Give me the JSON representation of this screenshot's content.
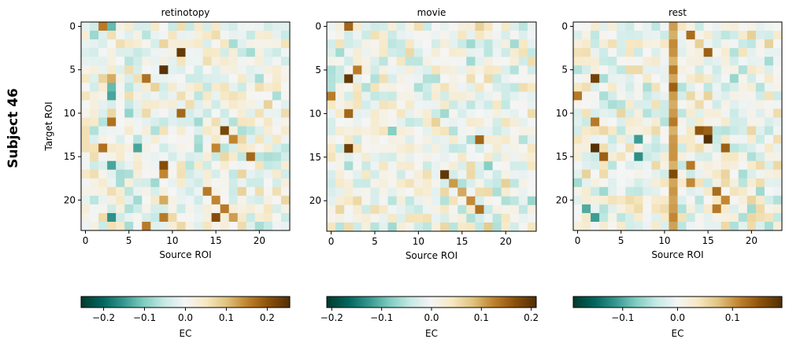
{
  "figure": {
    "row_label": "Subject 46"
  },
  "chart_data": [
    {
      "type": "heatmap",
      "title": "retinotopy",
      "xlabel": "Source ROI",
      "ylabel": "Target ROI",
      "n_rois": 24,
      "x_ticks": [
        0,
        5,
        10,
        15,
        20
      ],
      "y_ticks": [
        0,
        5,
        10,
        15,
        20
      ],
      "colormap": "BrBG_r",
      "vmin": -0.255,
      "vmax": 0.255,
      "colorbar": {
        "label": "EC",
        "ticks": [
          -0.2,
          -0.1,
          0.0,
          0.1,
          0.2
        ],
        "tick_labels": [
          "−0.2",
          "−0.1",
          "0.0",
          "0.1",
          "0.2"
        ]
      },
      "seed": 46001,
      "strong_cells": [
        {
          "r": 0,
          "c": 2,
          "v": 0.16
        },
        {
          "r": 0,
          "c": 3,
          "v": -0.12
        },
        {
          "r": 3,
          "c": 11,
          "v": 0.24
        },
        {
          "r": 5,
          "c": 9,
          "v": 0.25
        },
        {
          "r": 6,
          "c": 7,
          "v": 0.17
        },
        {
          "r": 6,
          "c": 3,
          "v": 0.12
        },
        {
          "r": 7,
          "c": 3,
          "v": -0.12
        },
        {
          "r": 8,
          "c": 3,
          "v": -0.14
        },
        {
          "r": 10,
          "c": 11,
          "v": 0.18
        },
        {
          "r": 11,
          "c": 3,
          "v": 0.17
        },
        {
          "r": 12,
          "c": 16,
          "v": 0.22
        },
        {
          "r": 13,
          "c": 17,
          "v": 0.15
        },
        {
          "r": 14,
          "c": 2,
          "v": 0.17
        },
        {
          "r": 14,
          "c": 6,
          "v": -0.14
        },
        {
          "r": 14,
          "c": 15,
          "v": 0.15
        },
        {
          "r": 15,
          "c": 19,
          "v": 0.18
        },
        {
          "r": 16,
          "c": 9,
          "v": 0.21
        },
        {
          "r": 16,
          "c": 3,
          "v": -0.14
        },
        {
          "r": 17,
          "c": 9,
          "v": 0.15
        },
        {
          "r": 19,
          "c": 14,
          "v": 0.16
        },
        {
          "r": 20,
          "c": 15,
          "v": 0.15
        },
        {
          "r": 20,
          "c": 9,
          "v": 0.12
        },
        {
          "r": 21,
          "c": 16,
          "v": 0.16
        },
        {
          "r": 22,
          "c": 17,
          "v": 0.13
        },
        {
          "r": 22,
          "c": 9,
          "v": 0.16
        },
        {
          "r": 22,
          "c": 3,
          "v": -0.16
        },
        {
          "r": 22,
          "c": 15,
          "v": 0.21
        },
        {
          "r": 23,
          "c": 7,
          "v": 0.16
        }
      ]
    },
    {
      "type": "heatmap",
      "title": "movie",
      "xlabel": "Source ROI",
      "ylabel": "",
      "n_rois": 24,
      "x_ticks": [
        0,
        5,
        10,
        15,
        20
      ],
      "y_ticks": [
        0,
        5,
        10,
        15,
        20
      ],
      "colormap": "BrBG_r",
      "vmin": -0.21,
      "vmax": 0.21,
      "colorbar": {
        "label": "EC",
        "ticks": [
          -0.2,
          -0.1,
          0.0,
          0.1,
          0.2
        ],
        "tick_labels": [
          "−0.2",
          "−0.1",
          "0.0",
          "0.1",
          "0.2"
        ]
      },
      "seed": 46002,
      "strong_cells": [
        {
          "r": 0,
          "c": 2,
          "v": 0.15
        },
        {
          "r": 5,
          "c": 3,
          "v": 0.13
        },
        {
          "r": 6,
          "c": 2,
          "v": 0.2
        },
        {
          "r": 8,
          "c": 0,
          "v": 0.13
        },
        {
          "r": 10,
          "c": 2,
          "v": 0.15
        },
        {
          "r": 12,
          "c": 7,
          "v": -0.08
        },
        {
          "r": 13,
          "c": 17,
          "v": 0.15
        },
        {
          "r": 14,
          "c": 2,
          "v": 0.19
        },
        {
          "r": 16,
          "c": 18,
          "v": -0.08
        },
        {
          "r": 17,
          "c": 13,
          "v": 0.2
        },
        {
          "r": 18,
          "c": 14,
          "v": 0.11
        },
        {
          "r": 19,
          "c": 15,
          "v": 0.1
        },
        {
          "r": 20,
          "c": 16,
          "v": 0.12
        },
        {
          "r": 21,
          "c": 17,
          "v": 0.14
        }
      ]
    },
    {
      "type": "heatmap",
      "title": "rest",
      "xlabel": "Source ROI",
      "ylabel": "",
      "n_rois": 24,
      "x_ticks": [
        0,
        5,
        10,
        15,
        20
      ],
      "y_ticks": [
        0,
        5,
        10,
        15,
        20
      ],
      "colormap": "BrBG_r",
      "vmin": -0.19,
      "vmax": 0.19,
      "colorbar": {
        "label": "EC",
        "ticks": [
          -0.1,
          0.0,
          0.1
        ],
        "tick_labels": [
          "−0.1",
          "0.0",
          "0.1"
        ]
      },
      "seed": 46003,
      "hot_column": {
        "c": 11,
        "v": 0.1
      },
      "strong_cells": [
        {
          "r": 1,
          "c": 13,
          "v": 0.13
        },
        {
          "r": 3,
          "c": 15,
          "v": 0.14
        },
        {
          "r": 6,
          "c": 2,
          "v": 0.17
        },
        {
          "r": 7,
          "c": 11,
          "v": 0.14
        },
        {
          "r": 8,
          "c": 0,
          "v": 0.12
        },
        {
          "r": 11,
          "c": 2,
          "v": 0.12
        },
        {
          "r": 11,
          "c": 11,
          "v": 0.12
        },
        {
          "r": 12,
          "c": 14,
          "v": 0.15
        },
        {
          "r": 12,
          "c": 15,
          "v": 0.14
        },
        {
          "r": 13,
          "c": 15,
          "v": 0.19
        },
        {
          "r": 13,
          "c": 7,
          "v": -0.11
        },
        {
          "r": 14,
          "c": 2,
          "v": 0.19
        },
        {
          "r": 14,
          "c": 17,
          "v": 0.14
        },
        {
          "r": 15,
          "c": 3,
          "v": 0.14
        },
        {
          "r": 15,
          "c": 7,
          "v": -0.12
        },
        {
          "r": 16,
          "c": 13,
          "v": 0.12
        },
        {
          "r": 17,
          "c": 11,
          "v": 0.16
        },
        {
          "r": 18,
          "c": 13,
          "v": 0.11
        },
        {
          "r": 19,
          "c": 16,
          "v": 0.13
        },
        {
          "r": 20,
          "c": 17,
          "v": 0.11
        },
        {
          "r": 21,
          "c": 1,
          "v": -0.1
        },
        {
          "r": 21,
          "c": 16,
          "v": 0.12
        },
        {
          "r": 22,
          "c": 2,
          "v": -0.11
        }
      ]
    }
  ]
}
